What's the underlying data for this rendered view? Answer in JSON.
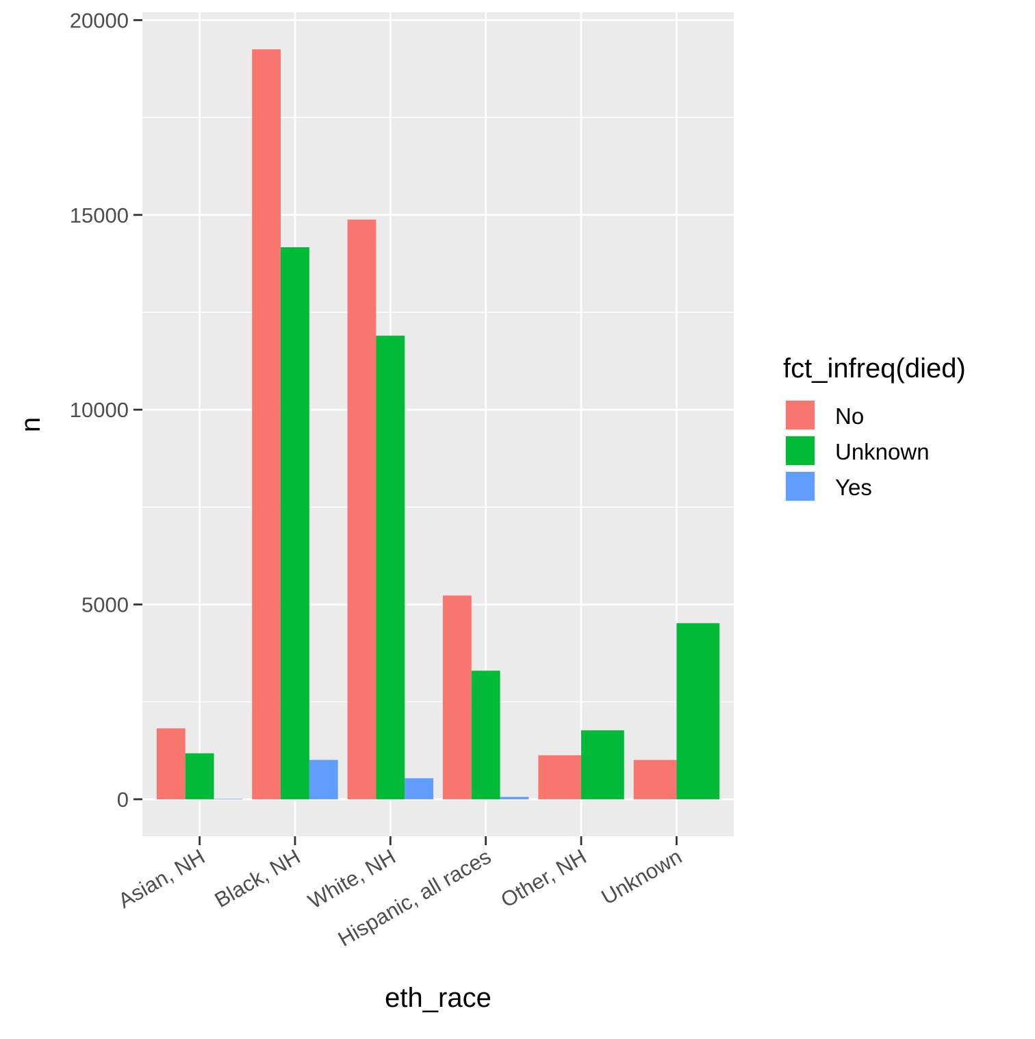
{
  "chart_data": {
    "type": "bar",
    "xlabel": "eth_race",
    "ylabel": "n",
    "categories": [
      "Asian, NH",
      "Black, NH",
      "White, NH",
      "Hispanic, all races",
      "Other, NH",
      "Unknown"
    ],
    "series": [
      {
        "name": "No",
        "color": "#F8766D",
        "values": [
          1820,
          19250,
          14880,
          5230,
          1130,
          1010
        ]
      },
      {
        "name": "Unknown",
        "color": "#00BA38",
        "values": [
          1180,
          14170,
          11900,
          3300,
          1770,
          4520
        ]
      },
      {
        "name": "Yes",
        "color": "#619CFF",
        "values": [
          10,
          1010,
          540,
          60,
          null,
          null
        ]
      }
    ],
    "ylim": [
      -950,
      20200
    ],
    "yticks": [
      0,
      5000,
      10000,
      15000,
      20000
    ],
    "ytick_labels": [
      "0",
      "5000",
      "10000",
      "15000",
      "20000"
    ],
    "grid": true,
    "legend": {
      "title": "fct_infreq(died)",
      "position": "right"
    },
    "panel_background": "#EBEBEB",
    "grid_color": "#FFFFFF"
  }
}
